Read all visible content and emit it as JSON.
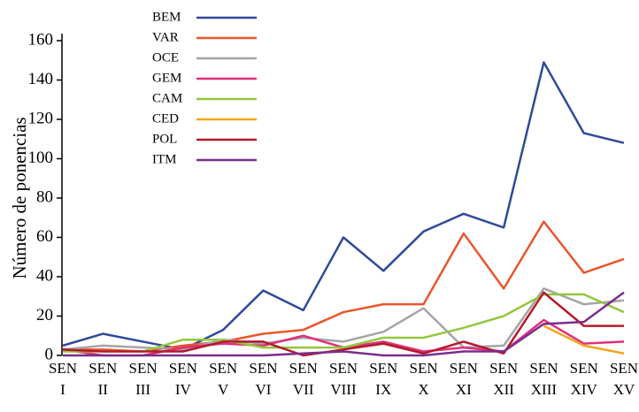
{
  "chart_data": {
    "type": "line",
    "y_label": "Número de ponencias",
    "categories": [
      "SEN I",
      "SEN II",
      "SEN III",
      "SEN IV",
      "SEN V",
      "SEN VI",
      "SEN VII",
      "SEN VIII",
      "SEN IX",
      "SEN X",
      "SEN XI",
      "SEN XII",
      "SEN XIII",
      "SEN XIV",
      "SEN XV"
    ],
    "ylim": [
      0,
      160
    ],
    "yticks": [
      0,
      20,
      40,
      60,
      80,
      100,
      120,
      140,
      160
    ],
    "series": [
      {
        "name": "BEM",
        "color": "#2e4a9a",
        "values": [
          5,
          11,
          7,
          3,
          13,
          33,
          23,
          60,
          43,
          63,
          72,
          65,
          149,
          113,
          108
        ]
      },
      {
        "name": "VAR",
        "color": "#e8572a",
        "values": [
          3,
          3,
          2,
          5,
          7,
          11,
          13,
          22,
          26,
          26,
          62,
          34,
          68,
          42,
          49
        ]
      },
      {
        "name": "OCE",
        "color": "#a5a5a5",
        "values": [
          3,
          5,
          4,
          3,
          8,
          6,
          9,
          7,
          12,
          24,
          4,
          5,
          34,
          26,
          28
        ]
      },
      {
        "name": "GEM",
        "color": "#e0307a",
        "values": [
          3,
          0,
          0,
          4,
          6,
          5,
          10,
          4,
          7,
          2,
          4,
          2,
          18,
          6,
          7
        ]
      },
      {
        "name": "CAM",
        "color": "#92c83e",
        "values": [
          2,
          2,
          2,
          8,
          8,
          4,
          4,
          4,
          9,
          9,
          14,
          20,
          31,
          31,
          22
        ]
      },
      {
        "name": "CED",
        "color": "#f5a51e",
        "values": [
          null,
          null,
          null,
          null,
          null,
          null,
          null,
          null,
          null,
          null,
          null,
          null,
          15,
          5,
          1
        ]
      },
      {
        "name": "POL",
        "color": "#b5192b",
        "values": [
          3,
          2,
          2,
          2,
          7,
          7,
          0,
          3,
          6,
          1,
          7,
          1,
          32,
          15,
          15
        ]
      },
      {
        "name": "ITM",
        "color": "#7b2d8e",
        "values": [
          0,
          0,
          0,
          0,
          0,
          0,
          1,
          2,
          0,
          0,
          2,
          2,
          16,
          17,
          32
        ]
      }
    ]
  }
}
